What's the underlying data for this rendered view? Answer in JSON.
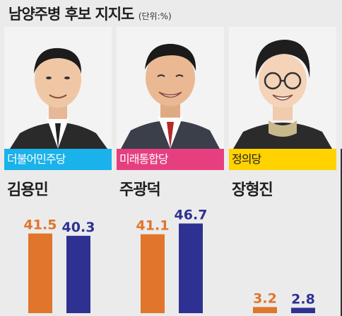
{
  "title": "남양주병 후보 지지도",
  "unit": "(단위:%)",
  "colors": {
    "series1": "#e0752b",
    "series2": "#2e3192"
  },
  "chart_data": {
    "type": "bar",
    "title": "남양주병 후보 지지도",
    "unit": "(단위:%)",
    "categories": [
      "김용민",
      "주광덕",
      "장형진"
    ],
    "parties": [
      "더불어민주당",
      "미래통합당",
      "정의당"
    ],
    "party_colors": [
      "#1ab2ea",
      "#e63f80",
      "#ffd200"
    ],
    "series": [
      {
        "values": [
          41.5,
          41.1,
          3.2
        ]
      },
      {
        "values": [
          40.3,
          46.7,
          2.8
        ]
      }
    ],
    "ylim": [
      0,
      50
    ],
    "grid": false
  }
}
